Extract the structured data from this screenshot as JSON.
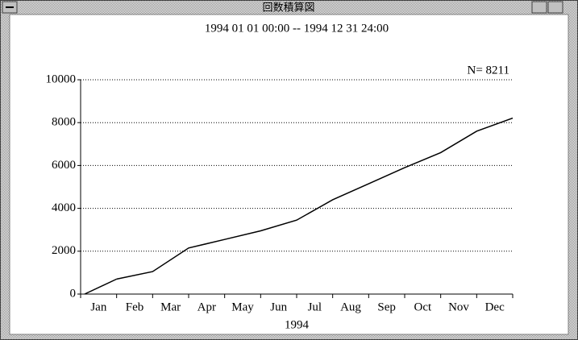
{
  "window_title": "回数積算図",
  "chart_data": {
    "type": "line",
    "title": "1994 01 01 00:00 -- 1994 12 31 24:00",
    "annotation": "N= 8211",
    "x_label": "1994",
    "categories": [
      "Jan",
      "Feb",
      "Mar",
      "Apr",
      "May",
      "Jun",
      "Jul",
      "Aug",
      "Sep",
      "Oct",
      "Nov",
      "Dec"
    ],
    "values": [
      700,
      1050,
      2150,
      2550,
      2950,
      3450,
      4400,
      5150,
      5900,
      6600,
      7600,
      8211
    ],
    "color": "#000000",
    "ylim": [
      0,
      10000
    ],
    "yticks": [
      0,
      2000,
      4000,
      6000,
      8000,
      10000
    ],
    "grid": true
  }
}
